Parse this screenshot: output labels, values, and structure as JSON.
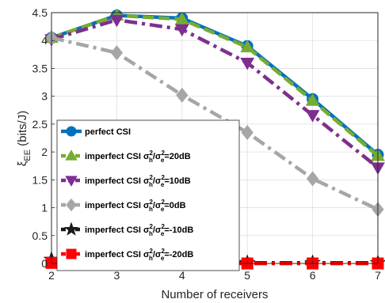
{
  "chart_data": {
    "type": "line",
    "xlabel": "Number of receivers",
    "ylabel_main": "ξ",
    "ylabel_sub": "EE",
    "ylabel_unit": " (bits/J)",
    "x": [
      2,
      3,
      4,
      5,
      6,
      7
    ],
    "xlim": [
      2,
      7
    ],
    "ylim": [
      0,
      4.5
    ],
    "xticks": [
      "2",
      "3",
      "4",
      "5",
      "6",
      "7"
    ],
    "yticks": [
      "0",
      "0.5",
      "1",
      "1.5",
      "2",
      "2.5",
      "3",
      "3.5",
      "4",
      "4.5"
    ],
    "grid": true,
    "legend_position": "lower-left",
    "series": [
      {
        "legend_parts": [
          "perfect CSI"
        ],
        "color": "#0072BD",
        "marker": "circle",
        "dash": "solid",
        "values": [
          4.05,
          4.45,
          4.4,
          3.9,
          2.95,
          1.95
        ]
      },
      {
        "legend_parts": [
          "imperfect CSI ",
          "σ",
          "2",
          "h",
          "/",
          "σ",
          "2",
          "e",
          "=20dB"
        ],
        "color": "#77AC30",
        "marker": "triangle-up",
        "dash": "dash",
        "values": [
          4.05,
          4.45,
          4.38,
          3.88,
          2.92,
          1.93
        ]
      },
      {
        "legend_parts": [
          "imperfect CSI ",
          "σ",
          "2",
          "h",
          "/",
          "σ",
          "2",
          "e",
          "=10dB"
        ],
        "color": "#7E2F8E",
        "marker": "triangle-down",
        "dash": "dashdot",
        "values": [
          4.02,
          4.37,
          4.2,
          3.6,
          2.66,
          1.72
        ]
      },
      {
        "legend_parts": [
          "imperfect CSI ",
          "σ",
          "2",
          "h",
          "/",
          "σ",
          "2",
          "e",
          "=0dB"
        ],
        "color": "#A6A6A6",
        "marker": "diamond",
        "dash": "dashdot",
        "values": [
          4.05,
          3.78,
          3.02,
          2.35,
          1.52,
          0.97
        ]
      },
      {
        "legend_parts": [
          "imperfect CSI ",
          "σ",
          "2",
          "h",
          "/",
          "σ",
          "2",
          "e",
          "=-10dB"
        ],
        "color": "#1A1A1A",
        "marker": "star",
        "dash": "dashdot",
        "values": [
          0.07,
          0.02,
          0.01,
          0.01,
          0.01,
          0.01
        ]
      },
      {
        "legend_parts": [
          "imperfect CSI ",
          "σ",
          "2",
          "h",
          "/",
          "σ",
          "2",
          "e",
          "=-20dB"
        ],
        "color": "#FF0000",
        "marker": "square",
        "dash": "dashdot",
        "values": [
          0.01,
          0.0,
          0.0,
          0.0,
          0.0,
          0.0
        ]
      }
    ]
  }
}
